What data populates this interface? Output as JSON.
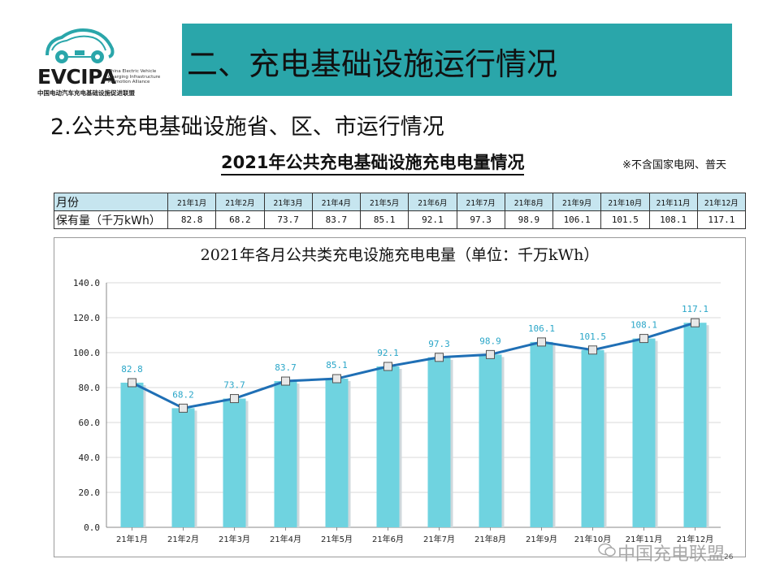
{
  "logo": {
    "brand": "EVCIPA",
    "english": "China Electric Vehicle Charging Infrastructure Promotion Alliance",
    "chinese": "中国电动汽车充电基础设施促进联盟",
    "color": "#2aa6aa"
  },
  "header": {
    "title": "二、充电基础设施运行情况",
    "bg_color": "#2aa6aa"
  },
  "section": {
    "subtitle": "2.公共充电基础设施省、区、市运行情况"
  },
  "table": {
    "title": "2021年公共充电基础设施充电电量情况",
    "note": "※不含国家电网、普天",
    "row_header": "月份",
    "row_label": "保有量（千万kWh）",
    "months": [
      "21年1月",
      "21年2月",
      "21年3月",
      "21年4月",
      "21年5月",
      "21年6月",
      "21年7月",
      "21年8月",
      "21年9月",
      "21年10月",
      "21年11月",
      "21年12月"
    ],
    "values": [
      "82.8",
      "68.2",
      "73.7",
      "83.7",
      "85.1",
      "92.1",
      "97.3",
      "98.9",
      "106.1",
      "101.5",
      "108.1",
      "117.1"
    ]
  },
  "chart_data": {
    "type": "bar",
    "title": "2021年各月公共类充电设施充电电量（单位：千万kWh）",
    "categories": [
      "21年1月",
      "21年2月",
      "21年3月",
      "21年4月",
      "21年5月",
      "21年6月",
      "21年7月",
      "21年8月",
      "21年9月",
      "21年10月",
      "21年11月",
      "21年12月"
    ],
    "values": [
      82.8,
      68.2,
      73.7,
      83.7,
      85.1,
      92.1,
      97.3,
      98.9,
      106.1,
      101.5,
      108.1,
      117.1
    ],
    "overlay_line": true,
    "ylim": [
      0,
      140
    ],
    "yticks": [
      "0.0",
      "20.0",
      "40.0",
      "60.0",
      "80.0",
      "100.0",
      "120.0",
      "140.0"
    ],
    "grid": true,
    "legend": "none",
    "bar_color": "#6fd3e0",
    "line_color": "#1f6fb5",
    "label_color": "#2aa6c8"
  },
  "watermark": {
    "text": "中国充电联盟"
  },
  "page": {
    "number": "26"
  }
}
